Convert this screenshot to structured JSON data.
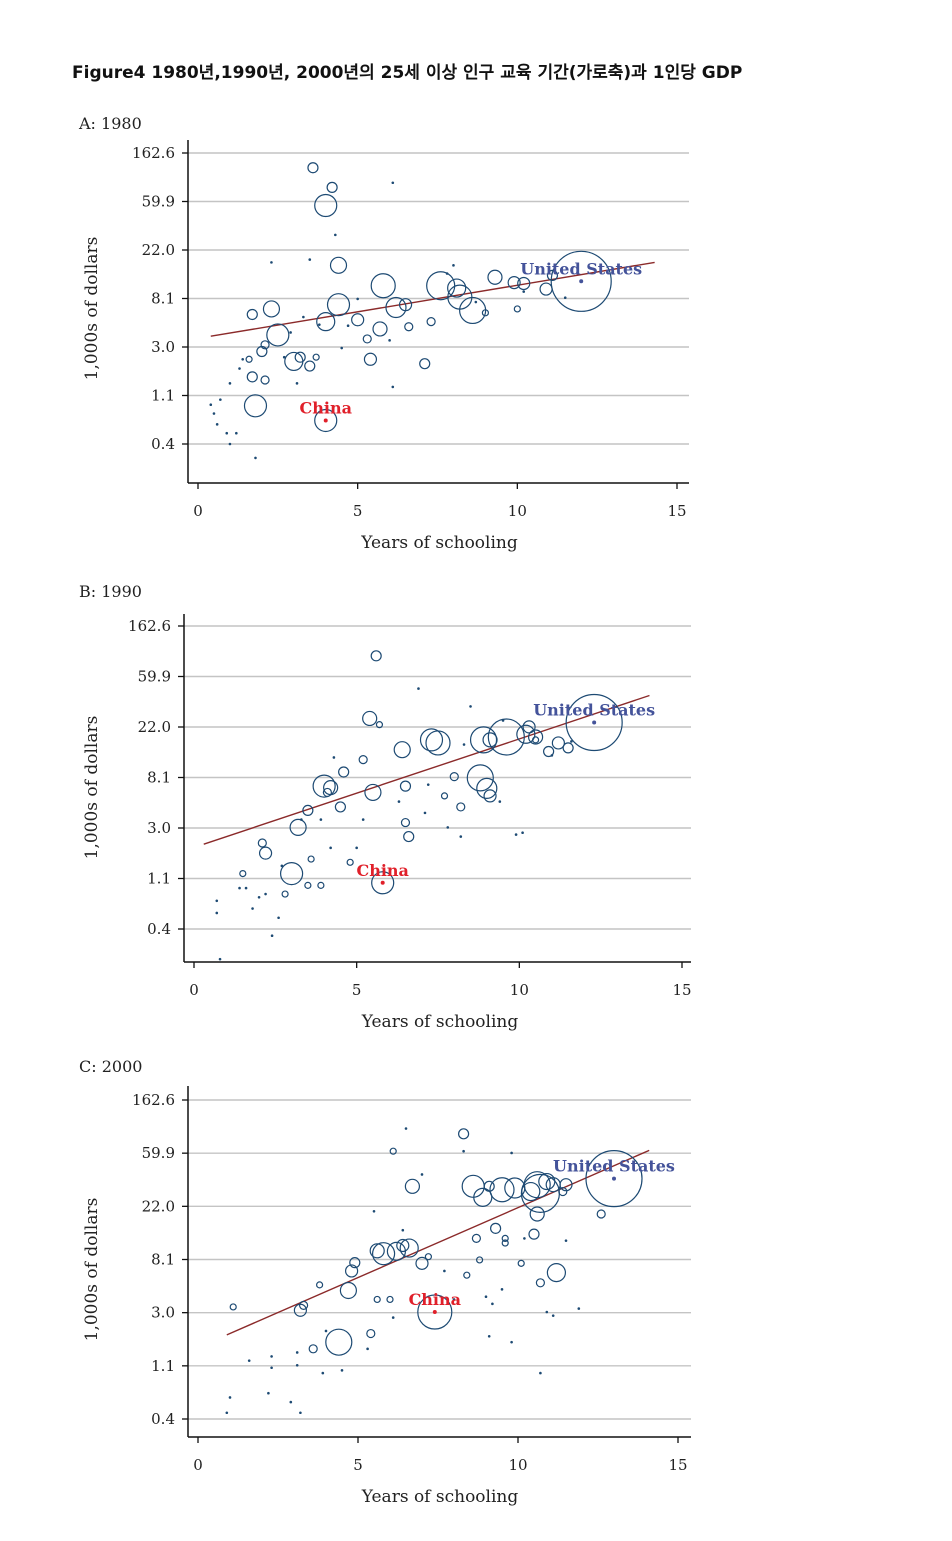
{
  "figure_title": "Figure4  1980년,1990년, 2000년의 25세 이상 인구 교육 기간(가로축)과 1인당 GDP",
  "colors": {
    "bubble": "#1d4a73",
    "trend": "#8b2a2a",
    "us_label": "#44539a",
    "china_label": "#e0202a",
    "grid": "#c4c4c4"
  },
  "chart_data": [
    {
      "type": "scatter",
      "title": "A: 1980",
      "xlabel": "Years of schooling",
      "ylabel": "1,000s of dollars",
      "xlim": [
        0,
        15
      ],
      "x_ticks": [
        "0",
        "5",
        "10",
        "15"
      ],
      "y_ticks": [
        "162.6",
        "59.9",
        "22.0",
        "8.1",
        "3.0",
        "1.1",
        "0.4"
      ],
      "y_scale": "log",
      "grid": true,
      "trend": {
        "x": [
          0.4,
          14.3
        ],
        "y": [
          3.7,
          17.0
        ]
      },
      "annotations": [
        {
          "text": "United States",
          "x": 12.0,
          "y": 11.5,
          "color": "us"
        },
        {
          "text": "China",
          "x": 4.0,
          "y": 0.65,
          "color": "china"
        }
      ],
      "points": [
        [
          12.0,
          11.5,
          30
        ],
        [
          4.0,
          0.65,
          11
        ],
        [
          1.8,
          0.88,
          11
        ],
        [
          3.6,
          120,
          5
        ],
        [
          4.0,
          55,
          11
        ],
        [
          4.2,
          80,
          5
        ],
        [
          4.4,
          16,
          8
        ],
        [
          2.3,
          6.5,
          8
        ],
        [
          2.5,
          3.8,
          11
        ],
        [
          3.0,
          2.2,
          9
        ],
        [
          3.2,
          2.4,
          5
        ],
        [
          4.0,
          5.0,
          9
        ],
        [
          4.4,
          7.1,
          11
        ],
        [
          5.0,
          5.2,
          6
        ],
        [
          5.7,
          4.3,
          7
        ],
        [
          5.8,
          10.5,
          12
        ],
        [
          6.2,
          6.7,
          10
        ],
        [
          6.5,
          7.1,
          6
        ],
        [
          7.6,
          10.5,
          14
        ],
        [
          8.1,
          10.0,
          9
        ],
        [
          8.2,
          8.3,
          12
        ],
        [
          8.6,
          6.3,
          13
        ],
        [
          9.3,
          12.5,
          7
        ],
        [
          9.9,
          11.2,
          6
        ],
        [
          10.2,
          11.0,
          6
        ],
        [
          10.9,
          9.8,
          6
        ],
        [
          11.1,
          13.0,
          5
        ],
        [
          5.4,
          2.3,
          6
        ],
        [
          7.1,
          2.1,
          5
        ],
        [
          1.7,
          5.8,
          5
        ],
        [
          1.6,
          2.3,
          3
        ],
        [
          1.7,
          1.6,
          5
        ],
        [
          2.0,
          2.7,
          5
        ],
        [
          2.1,
          3.1,
          4
        ],
        [
          2.1,
          1.5,
          4
        ],
        [
          3.5,
          2.0,
          5
        ],
        [
          3.7,
          2.4,
          3
        ],
        [
          5.3,
          3.5,
          4
        ],
        [
          6.6,
          4.5,
          4
        ],
        [
          7.3,
          5.0,
          4
        ],
        [
          9.0,
          6.0,
          3
        ],
        [
          10.0,
          6.5,
          3
        ],
        [
          4.3,
          30,
          2
        ],
        [
          6.1,
          1.3,
          2.5
        ],
        [
          3.5,
          18,
          2
        ],
        [
          2.3,
          17,
          2
        ],
        [
          6.1,
          88,
          2
        ],
        [
          11.5,
          8.2,
          2
        ],
        [
          5.0,
          8.0,
          2
        ],
        [
          8.0,
          16.0,
          2
        ],
        [
          7.8,
          13.5,
          2
        ],
        [
          3.3,
          5.5,
          2
        ],
        [
          0.4,
          0.9,
          2
        ],
        [
          0.6,
          0.6,
          2
        ],
        [
          0.9,
          0.5,
          2
        ],
        [
          1.2,
          0.5,
          2
        ],
        [
          1.8,
          0.3,
          2
        ],
        [
          0.7,
          1.0,
          2
        ],
        [
          1.0,
          1.4,
          2
        ],
        [
          1.3,
          1.9,
          2
        ],
        [
          2.9,
          4.0,
          2
        ],
        [
          3.1,
          1.4,
          2
        ],
        [
          4.5,
          2.9,
          2
        ],
        [
          4.7,
          4.6,
          2
        ],
        [
          1.4,
          2.3,
          2
        ],
        [
          2.7,
          2.4,
          2
        ],
        [
          3.8,
          4.7,
          2
        ],
        [
          6.0,
          3.4,
          2
        ],
        [
          8.7,
          7.5,
          2
        ],
        [
          10.2,
          9.3,
          2
        ],
        [
          0.5,
          0.75,
          2
        ],
        [
          1.0,
          0.4,
          2
        ]
      ]
    },
    {
      "type": "scatter",
      "title": "B: 1990",
      "xlabel": "Years of schooling",
      "ylabel": "1,000s of dollars",
      "xlim": [
        0,
        15
      ],
      "x_ticks": [
        "0",
        "5",
        "10",
        "15"
      ],
      "y_ticks": [
        "162.6",
        "59.9",
        "22.0",
        "8.1",
        "3.0",
        "1.1",
        "0.4"
      ],
      "y_scale": "log",
      "grid": true,
      "trend": {
        "x": [
          0.3,
          14.0
        ],
        "y": [
          2.15,
          41.0
        ]
      },
      "annotations": [
        {
          "text": "United States",
          "x": 12.3,
          "y": 24.0,
          "color": "us"
        },
        {
          "text": "China",
          "x": 5.8,
          "y": 1.0,
          "color": "china"
        }
      ],
      "points": [
        [
          12.3,
          24.0,
          28
        ],
        [
          5.8,
          1.0,
          11
        ],
        [
          5.6,
          90,
          5
        ],
        [
          5.4,
          26,
          7
        ],
        [
          5.7,
          23,
          3
        ],
        [
          4.0,
          6.8,
          11
        ],
        [
          4.2,
          6.6,
          7
        ],
        [
          3.5,
          4.2,
          5
        ],
        [
          3.2,
          3.0,
          8
        ],
        [
          3.0,
          1.2,
          11
        ],
        [
          2.1,
          2.2,
          4
        ],
        [
          2.2,
          1.8,
          6
        ],
        [
          4.5,
          4.5,
          5
        ],
        [
          4.6,
          9.0,
          5
        ],
        [
          5.2,
          11.5,
          4
        ],
        [
          5.5,
          6.0,
          8
        ],
        [
          6.4,
          14.0,
          8
        ],
        [
          6.5,
          6.8,
          5
        ],
        [
          7.3,
          17.0,
          11
        ],
        [
          7.5,
          16.0,
          12
        ],
        [
          8.9,
          17.0,
          13
        ],
        [
          9.1,
          17.0,
          7
        ],
        [
          9.6,
          18.0,
          18
        ],
        [
          10.2,
          19.0,
          9
        ],
        [
          10.3,
          22.0,
          6
        ],
        [
          10.5,
          18.0,
          7
        ],
        [
          10.9,
          13.5,
          5
        ],
        [
          11.2,
          16.0,
          6
        ],
        [
          11.5,
          14.5,
          5
        ],
        [
          8.8,
          8.0,
          13
        ],
        [
          9.0,
          6.5,
          10
        ],
        [
          9.1,
          5.6,
          6
        ],
        [
          6.6,
          2.5,
          5
        ],
        [
          6.5,
          3.3,
          4
        ],
        [
          4.1,
          6.0,
          4
        ],
        [
          3.6,
          1.6,
          3
        ],
        [
          4.8,
          1.5,
          3
        ],
        [
          3.5,
          0.95,
          3
        ],
        [
          2.8,
          0.8,
          3
        ],
        [
          3.9,
          0.95,
          3
        ],
        [
          1.5,
          1.2,
          3
        ],
        [
          1.6,
          0.9,
          2.5
        ],
        [
          2.0,
          0.75,
          2.5
        ],
        [
          2.2,
          0.8,
          2.5
        ],
        [
          0.7,
          0.7,
          2.5
        ],
        [
          8.0,
          8.2,
          4
        ],
        [
          8.2,
          4.5,
          4
        ],
        [
          7.7,
          5.6,
          3
        ],
        [
          10.5,
          17.0,
          3
        ],
        [
          6.9,
          47,
          2
        ],
        [
          8.5,
          33,
          2
        ],
        [
          9.5,
          25,
          2
        ],
        [
          8.3,
          15.5,
          2
        ],
        [
          4.3,
          12.0,
          2
        ],
        [
          3.9,
          3.5,
          2
        ],
        [
          5.2,
          3.5,
          2
        ],
        [
          6.3,
          5.0,
          2
        ],
        [
          7.8,
          3.0,
          2
        ],
        [
          8.2,
          2.5,
          2
        ],
        [
          9.9,
          2.6,
          2
        ],
        [
          2.7,
          1.4,
          2
        ],
        [
          1.4,
          0.9,
          2
        ],
        [
          1.8,
          0.6,
          2
        ],
        [
          2.4,
          0.35,
          2
        ],
        [
          0.8,
          0.22,
          2
        ],
        [
          0.7,
          0.55,
          2
        ],
        [
          2.6,
          0.5,
          2
        ],
        [
          5.0,
          2.0,
          2
        ],
        [
          7.1,
          4.0,
          2
        ],
        [
          9.4,
          5.0,
          2
        ],
        [
          10.1,
          2.7,
          2
        ],
        [
          3.3,
          3.5,
          2
        ],
        [
          4.2,
          2.0,
          2
        ],
        [
          7.2,
          7.0,
          2
        ],
        [
          11.0,
          12.5,
          2
        ],
        [
          11.6,
          16.5,
          2
        ]
      ]
    },
    {
      "type": "scatter",
      "title": "C: 2000",
      "xlabel": "Years of schooling",
      "ylabel": "1,000s of dollars",
      "xlim": [
        0,
        15
      ],
      "x_ticks": [
        "0",
        "5",
        "10",
        "15"
      ],
      "y_ticks": [
        "162.6",
        "59.9",
        "22.0",
        "8.1",
        "3.0",
        "1.1",
        "0.4"
      ],
      "y_scale": "log",
      "grid": true,
      "trend": {
        "x": [
          0.9,
          14.1
        ],
        "y": [
          1.95,
          63.0
        ]
      },
      "annotations": [
        {
          "text": "United States",
          "x": 13.0,
          "y": 37.0,
          "color": "us"
        },
        {
          "text": "China",
          "x": 7.4,
          "y": 3.0,
          "color": "china"
        }
      ],
      "points": [
        [
          13.0,
          37.0,
          28
        ],
        [
          7.4,
          3.0,
          17
        ],
        [
          4.4,
          1.7,
          13
        ],
        [
          4.7,
          4.5,
          8
        ],
        [
          4.8,
          6.5,
          6
        ],
        [
          4.9,
          7.6,
          5
        ],
        [
          5.6,
          9.5,
          7
        ],
        [
          5.8,
          9.0,
          11
        ],
        [
          6.2,
          9.4,
          9
        ],
        [
          6.4,
          10.5,
          6
        ],
        [
          6.6,
          10.0,
          9
        ],
        [
          6.7,
          32.0,
          7
        ],
        [
          7.0,
          7.5,
          6
        ],
        [
          8.3,
          86,
          5
        ],
        [
          8.6,
          32,
          11
        ],
        [
          8.9,
          26,
          9
        ],
        [
          9.1,
          32,
          5
        ],
        [
          9.5,
          30,
          12
        ],
        [
          9.9,
          31,
          10
        ],
        [
          10.4,
          29,
          9
        ],
        [
          10.6,
          33,
          13
        ],
        [
          10.7,
          28,
          19
        ],
        [
          10.9,
          35,
          8
        ],
        [
          11.1,
          33,
          7
        ],
        [
          11.5,
          33,
          6
        ],
        [
          12.6,
          19.0,
          4
        ],
        [
          10.6,
          19.0,
          7
        ],
        [
          11.2,
          6.3,
          9
        ],
        [
          10.5,
          13.0,
          5
        ],
        [
          9.3,
          14.5,
          5
        ],
        [
          8.7,
          12.0,
          4
        ],
        [
          3.3,
          3.4,
          4
        ],
        [
          3.2,
          3.1,
          6
        ],
        [
          3.6,
          1.5,
          4
        ],
        [
          5.4,
          2.0,
          4
        ],
        [
          3.8,
          5.0,
          3
        ],
        [
          5.6,
          3.8,
          3
        ],
        [
          6.0,
          3.8,
          3
        ],
        [
          10.7,
          5.2,
          4
        ],
        [
          11.4,
          29.0,
          4
        ],
        [
          9.6,
          12.0,
          3
        ],
        [
          8.8,
          8.0,
          3
        ],
        [
          7.2,
          8.5,
          3
        ],
        [
          9.6,
          11.0,
          3
        ],
        [
          10.1,
          7.5,
          3
        ],
        [
          8.4,
          6.0,
          3
        ],
        [
          1.1,
          3.3,
          3
        ],
        [
          6.1,
          62,
          3
        ],
        [
          6.5,
          95,
          2
        ],
        [
          9.8,
          60,
          2
        ],
        [
          8.3,
          62,
          2
        ],
        [
          7.0,
          40,
          2
        ],
        [
          5.5,
          20,
          2
        ],
        [
          6.4,
          14,
          2
        ],
        [
          7.7,
          6.5,
          2
        ],
        [
          10.2,
          12,
          2
        ],
        [
          11.5,
          11.5,
          2
        ],
        [
          9.5,
          4.6,
          2
        ],
        [
          10.9,
          3.0,
          2
        ],
        [
          11.9,
          3.2,
          2
        ],
        [
          11.1,
          2.8,
          2
        ],
        [
          9.1,
          1.9,
          2
        ],
        [
          9.8,
          1.7,
          2
        ],
        [
          10.7,
          0.95,
          2
        ],
        [
          3.2,
          0.45,
          2
        ],
        [
          3.1,
          1.1,
          2
        ],
        [
          2.3,
          1.3,
          2
        ],
        [
          3.1,
          1.4,
          2
        ],
        [
          3.9,
          0.95,
          2
        ],
        [
          0.9,
          0.45,
          2
        ],
        [
          1.0,
          0.6,
          2
        ],
        [
          1.6,
          1.2,
          2
        ],
        [
          2.2,
          0.65,
          2
        ],
        [
          2.3,
          1.05,
          2
        ],
        [
          2.9,
          0.55,
          2
        ],
        [
          4.0,
          2.1,
          2
        ],
        [
          5.3,
          1.5,
          2
        ],
        [
          6.1,
          2.7,
          2
        ],
        [
          9.0,
          4.0,
          2
        ],
        [
          9.2,
          3.5,
          2
        ],
        [
          8.0,
          3.8,
          2
        ],
        [
          4.5,
          1.0,
          2
        ]
      ]
    }
  ]
}
